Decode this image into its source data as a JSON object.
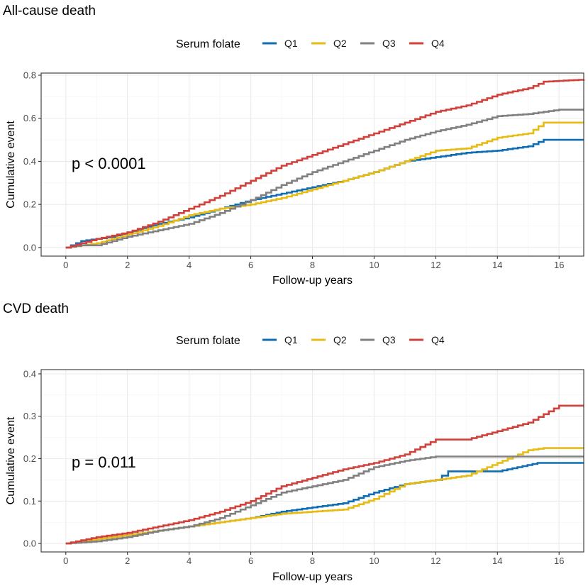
{
  "chart_data": [
    {
      "type": "line",
      "title": "All-cause death",
      "xlabel": "Follow-up years",
      "ylabel": "Cumulative event",
      "xlim": [
        -0.8,
        16.8
      ],
      "ylim": [
        -0.04,
        0.81
      ],
      "xticks": [
        0,
        2,
        4,
        6,
        8,
        10,
        12,
        14,
        16
      ],
      "yticks": [
        0.0,
        0.2,
        0.4,
        0.6,
        0.8
      ],
      "ytick_labels": [
        "0.0",
        "0.2",
        "0.4",
        "0.6",
        "0.8"
      ],
      "grid": true,
      "legend": {
        "title": "Serum folate",
        "position": "top"
      },
      "annotation": "p < 0.0001",
      "series": [
        {
          "name": "Q1",
          "color": "#0f6db5",
          "x": [
            0,
            0.5,
            1,
            1.5,
            2,
            3,
            4,
            5,
            6,
            7,
            8,
            9,
            10,
            11,
            12,
            13,
            14,
            15,
            15.5,
            16.8
          ],
          "y": [
            0,
            0.03,
            0.04,
            0.05,
            0.07,
            0.11,
            0.14,
            0.18,
            0.22,
            0.25,
            0.28,
            0.31,
            0.35,
            0.4,
            0.42,
            0.44,
            0.45,
            0.47,
            0.5,
            0.5
          ]
        },
        {
          "name": "Q2",
          "color": "#e8bb12",
          "x": [
            0,
            0.5,
            1,
            2,
            3,
            4,
            5,
            6,
            7,
            8,
            9,
            10,
            11,
            12,
            13,
            14,
            15,
            15.5,
            16.8
          ],
          "y": [
            0,
            0.01,
            0.02,
            0.06,
            0.1,
            0.15,
            0.18,
            0.2,
            0.23,
            0.27,
            0.31,
            0.35,
            0.4,
            0.45,
            0.46,
            0.51,
            0.53,
            0.58,
            0.58
          ]
        },
        {
          "name": "Q3",
          "color": "#808080",
          "x": [
            0,
            0.5,
            1,
            2,
            3,
            4,
            5,
            6,
            7,
            8,
            9,
            10,
            11,
            12,
            13,
            14,
            15,
            16,
            16.8
          ],
          "y": [
            0,
            0.01,
            0.01,
            0.05,
            0.08,
            0.11,
            0.16,
            0.22,
            0.29,
            0.35,
            0.4,
            0.45,
            0.5,
            0.54,
            0.57,
            0.61,
            0.62,
            0.64,
            0.64
          ]
        },
        {
          "name": "Q4",
          "color": "#d1403b",
          "x": [
            0,
            0.5,
            1,
            2,
            3,
            4,
            5,
            6,
            7,
            8,
            9,
            10,
            11,
            12,
            13,
            14,
            15,
            15.5,
            16.8
          ],
          "y": [
            0,
            0.02,
            0.04,
            0.07,
            0.12,
            0.18,
            0.24,
            0.31,
            0.38,
            0.43,
            0.48,
            0.53,
            0.58,
            0.63,
            0.66,
            0.71,
            0.74,
            0.77,
            0.78
          ]
        }
      ]
    },
    {
      "type": "line",
      "title": "CVD death",
      "xlabel": "Follow-up years",
      "ylabel": "Cumulative event",
      "xlim": [
        -0.8,
        16.8
      ],
      "ylim": [
        -0.02,
        0.41
      ],
      "xticks": [
        0,
        2,
        4,
        6,
        8,
        10,
        12,
        14,
        16
      ],
      "yticks": [
        0.0,
        0.1,
        0.2,
        0.3,
        0.4
      ],
      "ytick_labels": [
        "0.0",
        "0.1",
        "0.2",
        "0.3",
        "0.4"
      ],
      "grid": true,
      "legend": {
        "title": "Serum folate",
        "position": "top"
      },
      "annotation": "p = 0.011",
      "series": [
        {
          "name": "Q1",
          "color": "#0f6db5",
          "x": [
            0,
            1,
            2,
            3,
            4,
            5,
            6,
            7,
            8,
            9,
            10,
            11,
            12,
            12.4,
            14,
            15.3,
            16.8
          ],
          "y": [
            0,
            0.01,
            0.02,
            0.03,
            0.04,
            0.05,
            0.06,
            0.075,
            0.085,
            0.095,
            0.12,
            0.14,
            0.15,
            0.17,
            0.17,
            0.19,
            0.19
          ]
        },
        {
          "name": "Q2",
          "color": "#e8bb12",
          "x": [
            0,
            1,
            2,
            3,
            4,
            5,
            6,
            7,
            8,
            9,
            10,
            11,
            12,
            13,
            14,
            15,
            15.5,
            16.8
          ],
          "y": [
            0,
            0.01,
            0.02,
            0.03,
            0.04,
            0.05,
            0.06,
            0.07,
            0.075,
            0.08,
            0.105,
            0.14,
            0.15,
            0.16,
            0.19,
            0.22,
            0.225,
            0.225
          ]
        },
        {
          "name": "Q3",
          "color": "#808080",
          "x": [
            0,
            1,
            2,
            3,
            4,
            5,
            6,
            7,
            8,
            9,
            10,
            11,
            12,
            13,
            16.8
          ],
          "y": [
            0,
            0.005,
            0.015,
            0.03,
            0.04,
            0.06,
            0.09,
            0.12,
            0.135,
            0.15,
            0.18,
            0.195,
            0.205,
            0.205,
            0.205
          ]
        },
        {
          "name": "Q4",
          "color": "#d1403b",
          "x": [
            0,
            1,
            2,
            3,
            4,
            5,
            6,
            7,
            8,
            9,
            10,
            11,
            12,
            13,
            14,
            15,
            16,
            16.8
          ],
          "y": [
            0,
            0.015,
            0.025,
            0.04,
            0.055,
            0.075,
            0.1,
            0.135,
            0.155,
            0.175,
            0.19,
            0.21,
            0.245,
            0.245,
            0.265,
            0.285,
            0.325,
            0.325
          ]
        }
      ]
    }
  ]
}
